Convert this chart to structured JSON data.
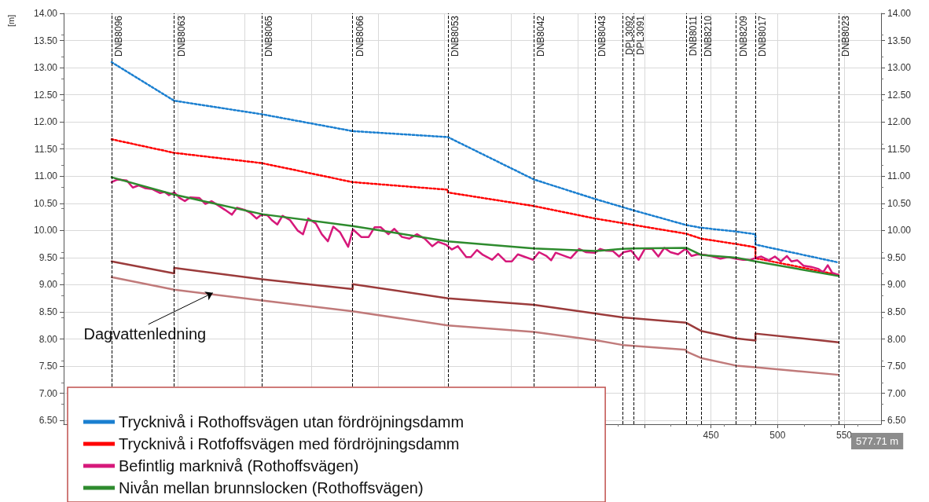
{
  "chart_data": {
    "type": "line",
    "ylabel": "[m]",
    "xlim": [
      -36,
      577.71
    ],
    "xticks": [
      {
        "value": 0,
        "label": null
      },
      {
        "value": 50,
        "label": null
      },
      {
        "value": 100,
        "label": null
      },
      {
        "value": 150,
        "label": null
      },
      {
        "value": 200,
        "label": null
      },
      {
        "value": 250,
        "label": null
      },
      {
        "value": 300,
        "label": null
      },
      {
        "value": 350,
        "label": null
      },
      {
        "value": 400,
        "label": null
      },
      450,
      500,
      550
    ],
    "ylim": [
      6.43,
      14
    ],
    "yticks": [
      {
        "value": 6.5,
        "label": "6.50"
      },
      {
        "value": 7,
        "label": "7.00"
      },
      {
        "value": 7.5,
        "label": "7.50"
      },
      {
        "value": 8,
        "label": "8.00"
      },
      {
        "value": 8.5,
        "label": "8.50"
      },
      {
        "value": 9,
        "label": "9.00"
      },
      {
        "value": 9.5,
        "label": "9.50"
      },
      {
        "value": 10,
        "label": "10.00"
      },
      {
        "value": 10.5,
        "label": "10.50"
      },
      {
        "value": 11,
        "label": "11.00"
      },
      {
        "value": 11.5,
        "label": "11.50"
      },
      {
        "value": 12,
        "label": "12.00"
      },
      {
        "value": 12.5,
        "label": "12.50"
      },
      {
        "value": 13,
        "label": "13.00"
      },
      {
        "value": 13.5,
        "label": "13.50"
      },
      {
        "value": 14,
        "label": "14.00"
      }
    ],
    "y2lim": [
      6.43,
      14
    ],
    "y2ticks": [
      {
        "value": 6.5,
        "label": "6.50"
      },
      {
        "value": 7,
        "label": "7.00"
      },
      {
        "value": 7.5,
        "label": "7.50"
      },
      {
        "value": 8,
        "label": "8.00"
      },
      {
        "value": 8.5,
        "label": "8.50"
      },
      {
        "value": 9,
        "label": "9.00"
      },
      {
        "value": 9.5,
        "label": "9.50"
      },
      {
        "value": 10,
        "label": "10.00"
      },
      {
        "value": 10.5,
        "label": "10.50"
      },
      {
        "value": 11,
        "label": "11.00"
      },
      {
        "value": 11.5,
        "label": "11.50"
      },
      {
        "value": 12,
        "label": "12.00"
      },
      {
        "value": 12.5,
        "label": "12.50"
      },
      {
        "value": 13,
        "label": "13.00"
      },
      {
        "value": 13.5,
        "label": "13.50"
      },
      {
        "value": 14,
        "label": "14.00"
      }
    ],
    "grid": true,
    "legend": "bottom left",
    "marker": "none",
    "series": [
      {
        "name": "Trycknivå i Rothoffsvägen utan fördröjningsdamm",
        "color": "#1a7fd0",
        "line_style": "dotted",
        "x": [
          0,
          47,
          113,
          181,
          252.5,
          317,
          363,
          392,
          431.4,
          442.5,
          468.9,
          483.4,
          483.4,
          545.8
        ],
        "values": [
          13.1,
          12.39,
          12.14,
          11.83,
          11.72,
          10.94,
          10.58,
          10.37,
          10.1,
          10.05,
          9.98,
          9.93,
          9.74,
          9.41
        ]
      },
      {
        "name": "Trycknivå i Rotfoffsvägen med fördröjningsdamm",
        "color": "#ff0000",
        "line_style": "dotted",
        "x": [
          0,
          47,
          113,
          181,
          252.5,
          252.5,
          317,
          363,
          431.4,
          442.5,
          468.9,
          483.4,
          483.4,
          545.8
        ],
        "values": [
          11.68,
          11.43,
          11.24,
          10.89,
          10.75,
          10.7,
          10.45,
          10.22,
          9.94,
          9.85,
          9.75,
          9.69,
          9.49,
          9.18
        ]
      },
      {
        "name": "Befintlig marknivå (Rothoffsvägen)",
        "color": "#d6187a",
        "line_style": "solid",
        "x": [
          0,
          4.5,
          11.4,
          15.9,
          20.4,
          25,
          30.7,
          36.3,
          39.7,
          43.1,
          47.2,
          51,
          55,
          59,
          65.8,
          70.4,
          75,
          79.5,
          85.1,
          90.3,
          94.2,
          99.9,
          104.4,
          108.8,
          112.4,
          116.9,
          120.3,
          124.4,
          128.3,
          134,
          139.6,
          143.7,
          147.6,
          153.3,
          157.8,
          162.4,
          166.4,
          171.4,
          177.6,
          181.2,
          187.4,
          193,
          197.5,
          202,
          207.8,
          212.3,
          218,
          223.6,
          229.3,
          235,
          240.7,
          245.2,
          250.9,
          255.4,
          260,
          266.3,
          269.7,
          274.3,
          278.8,
          285.7,
          290.2,
          295.9,
          300.5,
          305,
          309.5,
          316.3,
          320.9,
          326.5,
          330,
          333.4,
          340.2,
          344.7,
          351,
          356,
          362.9,
          366.9,
          370.8,
          376.4,
          381,
          384.4,
          390.1,
          395.7,
          400.3,
          405.9,
          410.5,
          415,
          419.6,
          425.3,
          430.9,
          435.5,
          440,
          445.7,
          451.4,
          457.1,
          462.8,
          468.4,
          474.1,
          479.8,
          483.2,
          487.8,
          493.4,
          498,
          502.5,
          507,
          510.4,
          514.9,
          519.5,
          525.2,
          530.8,
          534.2,
          537.7,
          541,
          545.6
        ],
        "values": [
          10.89,
          10.94,
          10.92,
          10.79,
          10.83,
          10.78,
          10.76,
          10.69,
          10.71,
          10.65,
          10.7,
          10.6,
          10.54,
          10.61,
          10.6,
          10.49,
          10.54,
          10.47,
          10.38,
          10.29,
          10.42,
          10.38,
          10.32,
          10.22,
          10.29,
          10.28,
          10.19,
          10.11,
          10.27,
          10.19,
          10.0,
          9.93,
          10.22,
          10.13,
          9.93,
          9.8,
          10.07,
          9.97,
          9.7,
          10.02,
          9.88,
          9.88,
          10.06,
          10.06,
          9.93,
          10.03,
          9.88,
          9.85,
          9.93,
          9.85,
          9.71,
          9.79,
          9.74,
          9.65,
          9.71,
          9.51,
          9.51,
          9.64,
          9.55,
          9.46,
          9.57,
          9.43,
          9.43,
          9.56,
          9.52,
          9.46,
          9.6,
          9.53,
          9.45,
          9.59,
          9.53,
          9.49,
          9.66,
          9.6,
          9.59,
          9.66,
          9.63,
          9.62,
          9.52,
          9.6,
          9.63,
          9.46,
          9.66,
          9.66,
          9.52,
          9.68,
          9.6,
          9.56,
          9.66,
          9.53,
          9.56,
          9.55,
          9.52,
          9.48,
          9.51,
          9.48,
          9.46,
          9.46,
          9.49,
          9.52,
          9.45,
          9.52,
          9.43,
          9.53,
          9.43,
          9.45,
          9.35,
          9.33,
          9.29,
          9.23,
          9.36,
          9.22,
          9.18
        ]
      },
      {
        "name": "Nivån mellan brunnslocken (Rothoffsvägen)",
        "color": "#2e8b2e",
        "line_style": "solid",
        "x": [
          0,
          47,
          113,
          181,
          252.5,
          317,
          363,
          383.7,
          392,
          431.4,
          442.5,
          468.9,
          483.4,
          545.8
        ],
        "values": [
          10.98,
          10.66,
          10.3,
          10.08,
          9.8,
          9.67,
          9.62,
          9.66,
          9.67,
          9.68,
          9.55,
          9.5,
          9.43,
          9.16
        ]
      },
      {
        "color": "#9b3b3b",
        "line_style": "solid",
        "x": [
          0,
          47,
          47,
          113,
          181,
          181,
          252.5,
          317,
          363,
          383.7,
          431.4,
          442.5,
          468.9,
          483.4,
          483.4,
          545.8
        ],
        "values": [
          9.43,
          9.21,
          9.31,
          9.1,
          8.92,
          9.01,
          8.75,
          8.63,
          8.47,
          8.4,
          8.3,
          8.15,
          8.01,
          7.97,
          8.1,
          7.94
        ]
      },
      {
        "color": "#c07a7a",
        "line_style": "solid",
        "x": [
          0,
          47,
          113,
          181,
          252.5,
          317,
          363,
          383.7,
          431.4,
          431.4,
          442.5,
          468.9,
          483.4,
          545.8
        ],
        "values": [
          9.14,
          8.91,
          8.71,
          8.51,
          8.25,
          8.13,
          7.98,
          7.89,
          7.8,
          7.77,
          7.65,
          7.51,
          7.48,
          7.34
        ]
      }
    ],
    "ref_lines": [
      {
        "axis": "x",
        "value": 0,
        "label": "DNB8096",
        "color": "#000000",
        "line_style": "dashed"
      },
      {
        "axis": "x",
        "value": 47,
        "label": "DNB8063",
        "color": "#000000",
        "line_style": "dashed"
      },
      {
        "axis": "x",
        "value": 113,
        "label": "DNB8065",
        "color": "#000000",
        "line_style": "dashed"
      },
      {
        "axis": "x",
        "value": 181,
        "label": "DNB8066",
        "color": "#000000",
        "line_style": "dashed"
      },
      {
        "axis": "x",
        "value": 252.5,
        "label": "DNB8053",
        "color": "#000000",
        "line_style": "dashed"
      },
      {
        "axis": "x",
        "value": 317,
        "label": "DNB8042",
        "color": "#000000",
        "line_style": "dashed"
      },
      {
        "axis": "x",
        "value": 363,
        "label": "DNB8043",
        "color": "#000000",
        "line_style": "dashed"
      },
      {
        "axis": "x",
        "value": 383.7,
        "label": "DPL3092",
        "color": "#000000",
        "line_style": "dashed"
      },
      {
        "axis": "x",
        "value": 392,
        "label": "DPL3091",
        "color": "#000000",
        "line_style": "dashed"
      },
      {
        "axis": "x",
        "value": 431.4,
        "label": "DNB8011",
        "color": "#000000",
        "line_style": "dashed"
      },
      {
        "axis": "x",
        "value": 442.5,
        "label": "DNB8210",
        "color": "#000000",
        "line_style": "dashed"
      },
      {
        "axis": "x",
        "value": 468.9,
        "label": "DNB8209",
        "color": "#000000",
        "line_style": "dashed"
      },
      {
        "axis": "x",
        "value": 483.4,
        "label": "DNB8017",
        "color": "#000000",
        "line_style": "dashed"
      },
      {
        "axis": "x",
        "value": 545.8,
        "label": "DNB8023",
        "color": "#000000",
        "line_style": "dashed"
      }
    ],
    "annotations": [
      {
        "text": "Dagvattenledning",
        "x": 76,
        "y": 8.85
      },
      "577.71 m"
    ]
  }
}
